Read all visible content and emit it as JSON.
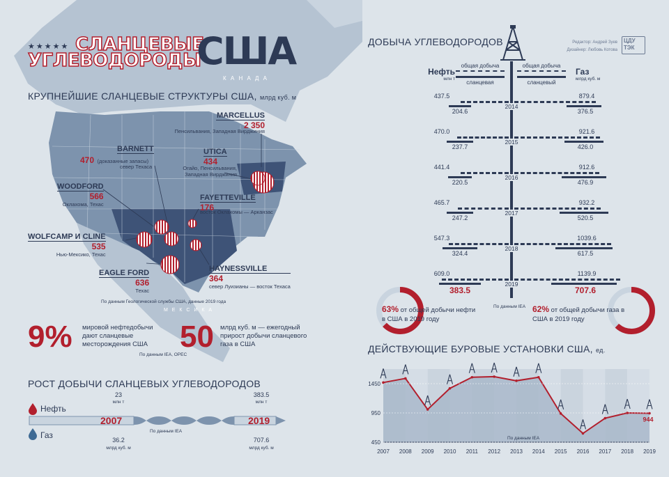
{
  "header": {
    "title_line1": "СЛАНЦЕВЫЕ",
    "title_line2": "УГЛЕВОДОРОДЫ",
    "title_usa": "США",
    "stars": "★★★★★"
  },
  "map": {
    "section_title": "КРУПНЕЙШИЕ СЛАНЦЕВЫЕ СТРУКТУРЫ США,",
    "section_unit": "млрд куб. м",
    "label_canada": "К А Н А Д А",
    "label_mexico": "М Е К С И К А",
    "source": "По данным Геологической службы США, данные 2019 года",
    "fields": [
      {
        "name": "MARCELLUS",
        "value": "2 350",
        "desc": "Пенсильвания, Западная Вирджиния"
      },
      {
        "name": "BARNETT",
        "value": "470",
        "desc": "(доказанные запасы)",
        "desc2": "север Техаса"
      },
      {
        "name": "UTICA",
        "value": "434",
        "desc": "Огайо, Пенсильвания,",
        "desc2": "Западная Вирджиния"
      },
      {
        "name": "WOODFORD",
        "value": "566",
        "desc": "Оклахома, Техас"
      },
      {
        "name": "FAYETTEVILLE",
        "value": "176",
        "desc": "восток Оклахомы — Арканзас"
      },
      {
        "name": "WOLFCAMP И CLINE",
        "value": "535",
        "desc": "Нью-Мексико, Техас"
      },
      {
        "name": "EAGLE FORD",
        "value": "636",
        "desc": "Техас"
      },
      {
        "name": "HAYNESSVILLE",
        "value": "364",
        "desc": "север Луизианы — восток Техаса"
      }
    ]
  },
  "facts": {
    "f1_big": "9%",
    "f1_text": "мировой нефтедобычи дают сланцевые месторождения США",
    "f2_big": "50",
    "f2_text": "млрд куб. м — ежегодный прирост добычи сланцевого газа в США",
    "source": "По данным IEA, OPEC"
  },
  "growth": {
    "section_title": "РОСТ ДОБЫЧИ СЛАНЦЕВЫХ УГЛЕВОДОРОДОВ",
    "label_oil": "Нефть",
    "label_gas": "Газ",
    "year_start": "2007",
    "year_end": "2019",
    "oil_2007": "23",
    "oil_2019": "383.5",
    "oil_unit": "млн т",
    "gas_2007": "36.2",
    "gas_2019": "707.6",
    "gas_unit": "млрд куб. м",
    "source": "По данным IEA"
  },
  "production": {
    "section_title": "ДОБЫЧА УГЛЕВОДОРОДОВ",
    "credit_editor": "Редактор: Андрей Зуев",
    "credit_designer": "Дизайнер: Любовь Котова",
    "logo_line1": "ЦДУ",
    "logo_line2": "ТЭК",
    "col_oil": "Нефть",
    "col_oil_unit": "млн т",
    "col_gas": "Газ",
    "col_gas_unit": "млрд куб. м",
    "legend_total_left": "общая добыча",
    "legend_shale_left": "сланцевая",
    "legend_total_right": "общая добыча",
    "legend_shale_right": "сланцевый",
    "source": "По данным IEA",
    "oil_share": "63%",
    "oil_share_text": "от общей добычи нефти в США в 2019 году",
    "gas_share": "62%",
    "gas_share_text": "от общей добычи газа в США в 2019 году",
    "colors": {
      "accent": "#b21f2d",
      "navy": "#2d3a55"
    }
  },
  "chart_data": {
    "type": "area",
    "title": "ДЕЙСТВУЮЩИЕ БУРОВЫЕ УСТАНОВКИ США,",
    "title_unit": "ед.",
    "x": [
      "2007",
      "2008",
      "2009",
      "2010",
      "2011",
      "2012",
      "2013",
      "2014",
      "2015",
      "2016",
      "2017",
      "2018",
      "2019"
    ],
    "values": [
      1470,
      1540,
      1010,
      1370,
      1560,
      1570,
      1500,
      1560,
      940,
      600,
      860,
      950,
      944
    ],
    "value_label_last": "944",
    "yticks": [
      "1450",
      "950",
      "450"
    ],
    "ylim": [
      450,
      1700
    ],
    "source": "По данным IEA",
    "production_table": {
      "years": [
        "2014",
        "2015",
        "2016",
        "2017",
        "2018",
        "2019"
      ],
      "oil_total": [
        "437.5",
        "470.0",
        "441.4",
        "465.7",
        "547.3",
        "609.0"
      ],
      "oil_shale": [
        "204.6",
        "237.7",
        "220.5",
        "247.2",
        "324.4",
        "383.5"
      ],
      "gas_total": [
        "879.4",
        "921.6",
        "912.6",
        "932.2",
        "1039.6",
        "1139.9"
      ],
      "gas_shale": [
        "376.5",
        "426.0",
        "476.9",
        "520.5",
        "617.5",
        "707.6"
      ]
    }
  }
}
